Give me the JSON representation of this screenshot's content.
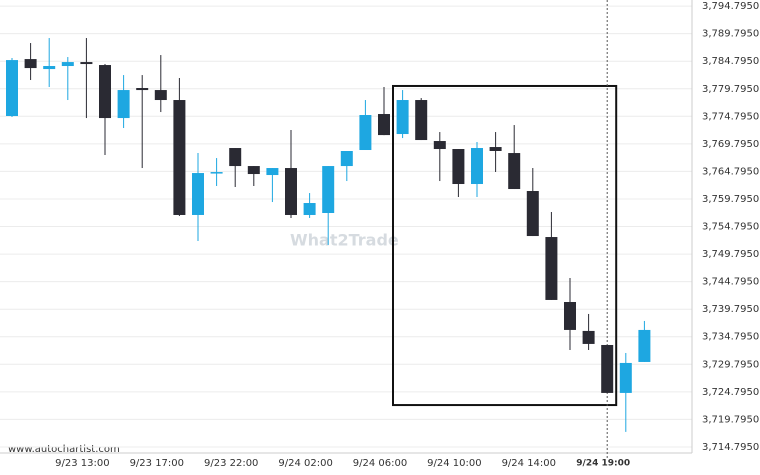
{
  "chart_data": {
    "type": "candlestick",
    "watermark": "What2Trade",
    "source": "www.autochartist.com",
    "categories": [
      null,
      null,
      null,
      null,
      "9/23 13:00",
      null,
      null,
      null,
      "9/23 17:00",
      null,
      null,
      null,
      "9/23 22:00",
      null,
      null,
      null,
      "9/24 02:00",
      null,
      null,
      null,
      "9/24 06:00",
      null,
      null,
      null,
      "9/24 10:00",
      null,
      null,
      null,
      "9/24 14:00",
      null,
      null,
      null,
      "9/24 19:00",
      null,
      null
    ],
    "open": [
      3774.85,
      3785.18,
      3783.37,
      3783.92,
      3784.64,
      3784.1,
      3774.48,
      3779.93,
      3779.56,
      3777.75,
      3756.89,
      3764.5,
      3769.04,
      3765.77,
      3764.14,
      3765.41,
      3756.89,
      3757.25,
      3765.77,
      3768.68,
      3775.21,
      3771.58,
      3777.75,
      3770.31,
      3768.86,
      3762.51,
      3769.22,
      3768.13,
      3761.24,
      3752.89,
      3741.1,
      3735.85,
      3733.3,
      3724.6,
      3730.22
    ],
    "high": [
      3785.37,
      3788.09,
      3789.0,
      3785.55,
      3789.0,
      3784.28,
      3782.28,
      3782.28,
      3785.91,
      3781.74,
      3768.13,
      3767.22,
      3769.04,
      3765.77,
      3765.41,
      3772.3,
      3760.87,
      3765.77,
      3768.5,
      3777.75,
      3780.11,
      3779.56,
      3778.11,
      3771.94,
      3768.86,
      3770.13,
      3771.94,
      3773.21,
      3765.41,
      3757.43,
      3745.46,
      3738.93,
      3733.3,
      3731.85,
      3737.66
    ],
    "low": [
      3774.67,
      3781.38,
      3780.11,
      3777.75,
      3774.48,
      3767.77,
      3772.67,
      3765.41,
      3775.57,
      3756.71,
      3752.17,
      3762.15,
      3761.97,
      3762.15,
      3759.24,
      3756.35,
      3756.35,
      3751.45,
      3763.05,
      3768.68,
      3771.39,
      3770.85,
      3770.49,
      3763.05,
      3760.15,
      3760.15,
      3764.69,
      3761.6,
      3753.07,
      3741.47,
      3732.39,
      3732.39,
      3724.6,
      3717.53,
      3730.22
    ],
    "close": [
      3785.0,
      3783.55,
      3783.92,
      3784.64,
      3784.28,
      3774.48,
      3779.56,
      3779.56,
      3777.75,
      3756.89,
      3764.5,
      3764.68,
      3765.77,
      3764.32,
      3765.41,
      3756.89,
      3759.06,
      3765.77,
      3768.5,
      3775.03,
      3771.39,
      3777.75,
      3770.49,
      3768.86,
      3762.51,
      3769.04,
      3768.5,
      3761.6,
      3753.07,
      3741.47,
      3736.03,
      3733.49,
      3724.6,
      3730.04,
      3736.03
    ],
    "up_color": "#1ea7e1",
    "down_color": "#2a2a33",
    "highlight": {
      "high": 3780.3,
      "low": 3722.4
    },
    "ylim": [
      3713.7,
      3795.9
    ],
    "yticks": [
      {
        "value": 3714.795,
        "label": "3,714.7950"
      },
      {
        "value": 3719.795,
        "label": "3,719.7950"
      },
      {
        "value": 3724.795,
        "label": "3,724.7950"
      },
      {
        "value": 3729.795,
        "label": "3,729.7950"
      },
      {
        "value": 3734.795,
        "label": "3,734.7950"
      },
      {
        "value": 3739.795,
        "label": "3,739.7950"
      },
      {
        "value": 3744.795,
        "label": "3,744.7950"
      },
      {
        "value": 3749.795,
        "label": "3,749.7950"
      },
      {
        "value": 3754.795,
        "label": "3,754.7950"
      },
      {
        "value": 3759.795,
        "label": "3,759.7950"
      },
      {
        "value": 3764.795,
        "label": "3,764.7950"
      },
      {
        "value": 3769.795,
        "label": "3,769.7950"
      },
      {
        "value": 3774.795,
        "label": "3,774.7950"
      },
      {
        "value": 3779.795,
        "label": "3,779.7950"
      },
      {
        "value": 3784.795,
        "label": "3,784.7950"
      },
      {
        "value": 3789.795,
        "label": "3,789.7950"
      },
      {
        "value": 3794.795,
        "label": "3,794.7950"
      }
    ],
    "grid": true
  }
}
